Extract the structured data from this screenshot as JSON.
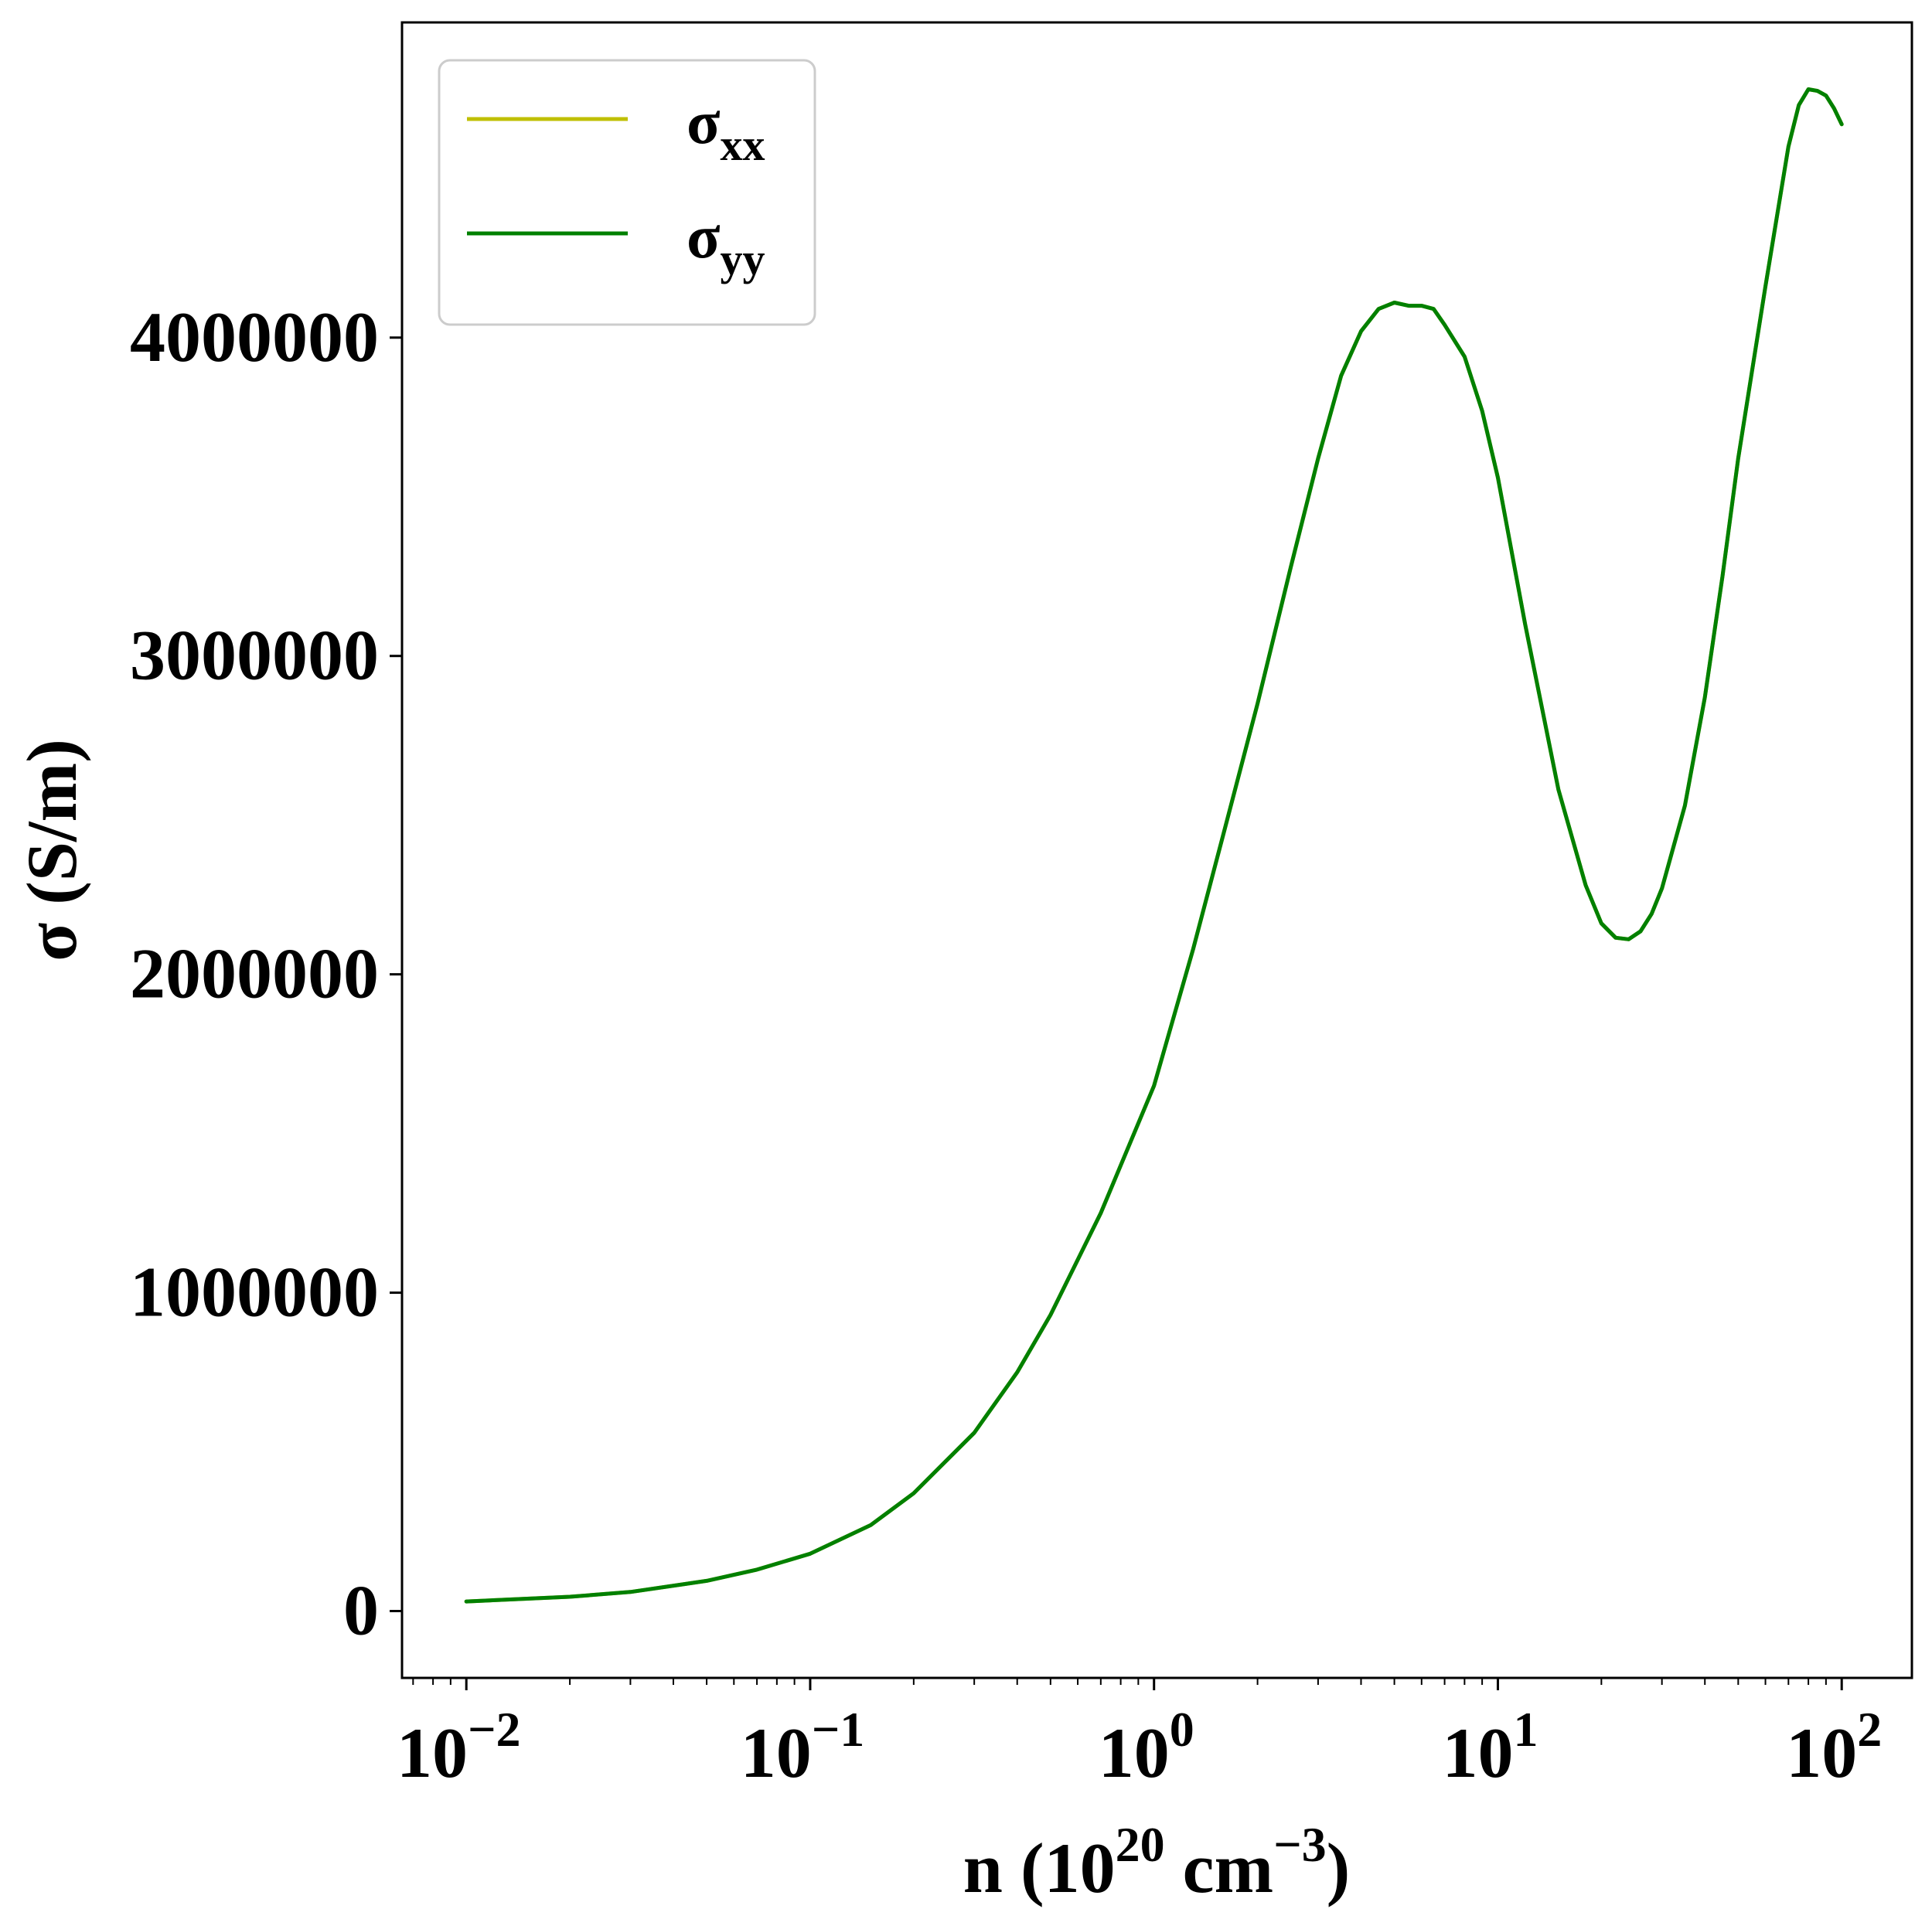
{
  "chart_data": {
    "type": "line",
    "xscale": "log",
    "xlim": [
      0.0065,
      160
    ],
    "ylim": [
      -210000,
      4990000
    ],
    "xticks": [
      {
        "value": 0.01,
        "base": "10",
        "exp": "−2"
      },
      {
        "value": 0.1,
        "base": "10",
        "exp": "−1"
      },
      {
        "value": 1,
        "base": "10",
        "exp": "0"
      },
      {
        "value": 10,
        "base": "10",
        "exp": "1"
      },
      {
        "value": 100,
        "base": "10",
        "exp": "2"
      }
    ],
    "yticks": [
      {
        "value": 0,
        "label": "0"
      },
      {
        "value": 1000000,
        "label": "1000000"
      },
      {
        "value": 2000000,
        "label": "2000000"
      },
      {
        "value": 3000000,
        "label": "3000000"
      },
      {
        "value": 4000000,
        "label": "4000000"
      }
    ],
    "xlabel": {
      "main": "n (10",
      "sup1": "20",
      "mid": " cm",
      "sup2": "−3",
      "end": ")"
    },
    "ylabel": "σ (S/m)",
    "legend": {
      "position": "top-left"
    },
    "grid": false,
    "series": [
      {
        "name": "σ",
        "subscript": "xx",
        "color": "#bfbf00",
        "x": [
          0.01,
          0.02,
          0.03,
          0.05,
          0.07,
          0.1,
          0.15,
          0.2,
          0.3,
          0.4,
          0.5,
          0.7,
          1.0,
          1.3,
          1.6,
          2.0,
          2.5,
          3.0,
          3.5,
          4.0,
          4.5,
          5.0,
          5.5,
          6.0,
          6.5,
          7.0,
          8.0,
          9.0,
          10,
          12,
          15,
          18,
          20,
          22,
          24,
          26,
          28,
          30,
          35,
          40,
          45,
          50,
          60,
          70,
          75,
          80,
          85,
          90,
          95,
          100
        ],
        "y": [
          30000,
          45000,
          60000,
          95000,
          130000,
          180000,
          270000,
          370000,
          560000,
          750000,
          930000,
          1250000,
          1650000,
          2080000,
          2450000,
          2850000,
          3280000,
          3620000,
          3880000,
          4020000,
          4090000,
          4110000,
          4100000,
          4100000,
          4090000,
          4040000,
          3940000,
          3770000,
          3560000,
          3100000,
          2580000,
          2280000,
          2160000,
          2115000,
          2110000,
          2135000,
          2190000,
          2270000,
          2530000,
          2870000,
          3250000,
          3620000,
          4160000,
          4600000,
          4730000,
          4780000,
          4775000,
          4760000,
          4720000,
          4670000
        ]
      },
      {
        "name": "σ",
        "subscript": "yy",
        "color": "#008000",
        "x": [
          0.01,
          0.02,
          0.03,
          0.05,
          0.07,
          0.1,
          0.15,
          0.2,
          0.3,
          0.4,
          0.5,
          0.7,
          1.0,
          1.3,
          1.6,
          2.0,
          2.5,
          3.0,
          3.5,
          4.0,
          4.5,
          5.0,
          5.5,
          6.0,
          6.5,
          7.0,
          8.0,
          9.0,
          10,
          12,
          15,
          18,
          20,
          22,
          24,
          26,
          28,
          30,
          35,
          40,
          45,
          50,
          60,
          70,
          75,
          80,
          85,
          90,
          95,
          100
        ],
        "y": [
          30000,
          45000,
          60000,
          95000,
          130000,
          180000,
          270000,
          370000,
          560000,
          750000,
          930000,
          1250000,
          1650000,
          2080000,
          2450000,
          2850000,
          3280000,
          3620000,
          3880000,
          4020000,
          4090000,
          4110000,
          4100000,
          4100000,
          4090000,
          4040000,
          3940000,
          3770000,
          3560000,
          3100000,
          2580000,
          2280000,
          2160000,
          2115000,
          2110000,
          2135000,
          2190000,
          2270000,
          2530000,
          2870000,
          3250000,
          3620000,
          4160000,
          4600000,
          4730000,
          4780000,
          4775000,
          4760000,
          4720000,
          4670000
        ]
      }
    ]
  }
}
